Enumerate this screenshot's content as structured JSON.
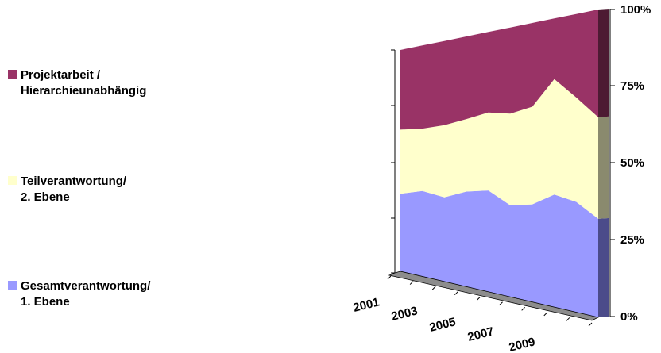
{
  "chart_data": {
    "type": "area",
    "stacked_percent": true,
    "three_d": true,
    "x": [
      "2001",
      "2002",
      "2003",
      "2004",
      "2005",
      "2006",
      "2007",
      "2008",
      "2009",
      "2010"
    ],
    "x_tick_labels": [
      "2001",
      "2003",
      "2005",
      "2007",
      "2009"
    ],
    "y_tick_labels": [
      "0%",
      "25%",
      "50%",
      "75%",
      "100%"
    ],
    "ylim": [
      0,
      100
    ],
    "legend_position": "left",
    "series": [
      {
        "name": "Gesamtverantwortung/ 1. Ebene",
        "color": "#9999ff",
        "side_color": "#4b4b8a",
        "values": [
          35,
          37,
          35,
          38,
          39,
          34,
          35,
          39,
          37,
          32
        ]
      },
      {
        "name": "Teilverantwortung/ 2. Ebene",
        "color": "#ffffcc",
        "side_color": "#8a8a6e",
        "values": [
          29,
          27,
          30,
          29,
          30,
          34,
          35,
          40,
          35,
          33
        ]
      },
      {
        "name": "Projektarbeit / Hierarchieunabhängig",
        "color": "#993366",
        "side_color": "#4d1a33",
        "values": [
          36,
          36,
          35,
          33,
          31,
          32,
          30,
          21,
          28,
          35
        ]
      }
    ]
  }
}
